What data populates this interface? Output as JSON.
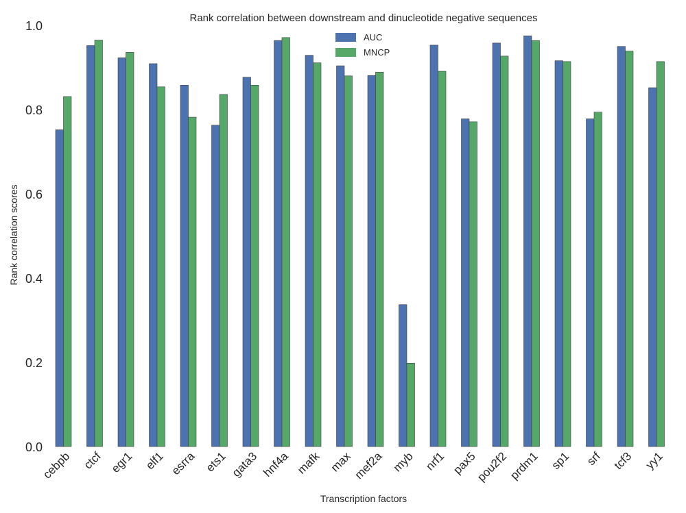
{
  "chart_data": {
    "type": "bar",
    "title": "Rank correlation between downstream and dinucleotide negative sequences",
    "xlabel": "Transcription factors",
    "ylabel": "Rank correlation scores",
    "ylim": [
      0.0,
      1.0
    ],
    "yticks": [
      "0.0",
      "0.2",
      "0.4",
      "0.6",
      "0.8",
      "1.0"
    ],
    "grid": false,
    "legend_position": "top-center",
    "categories": [
      "cebpb",
      "ctcf",
      "egr1",
      "elf1",
      "esrra",
      "ets1",
      "gata3",
      "hnf4a",
      "mafk",
      "max",
      "mef2a",
      "myb",
      "nrf1",
      "pax5",
      "pou2f2",
      "prdm1",
      "sp1",
      "srf",
      "tcf3",
      "yy1"
    ],
    "series": [
      {
        "name": "AUC",
        "color": "#4c72b0",
        "values": [
          0.752,
          0.952,
          0.923,
          0.909,
          0.858,
          0.763,
          0.877,
          0.964,
          0.929,
          0.904,
          0.881,
          0.337,
          0.953,
          0.778,
          0.958,
          0.975,
          0.916,
          0.778,
          0.95,
          0.852
        ]
      },
      {
        "name": "MNCP",
        "color": "#55a868",
        "values": [
          0.831,
          0.965,
          0.936,
          0.854,
          0.782,
          0.836,
          0.858,
          0.971,
          0.911,
          0.88,
          0.889,
          0.198,
          0.891,
          0.771,
          0.927,
          0.964,
          0.914,
          0.794,
          0.939,
          0.914
        ]
      }
    ]
  }
}
